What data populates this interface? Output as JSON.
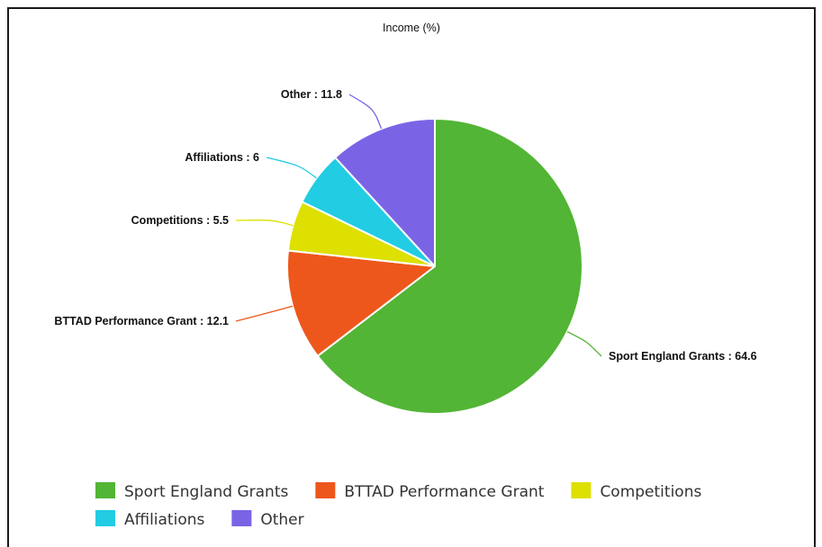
{
  "chart_data": {
    "type": "pie",
    "title": "Income (%)",
    "slices": [
      {
        "label": "Sport England Grants",
        "value": 64.6,
        "color": "#52b535"
      },
      {
        "label": "BTTAD Performance Grant",
        "value": 12.1,
        "color": "#ee571c"
      },
      {
        "label": "Competitions",
        "value": 5.5,
        "color": "#dde000"
      },
      {
        "label": "Affiliations",
        "value": 6,
        "color": "#22cce3"
      },
      {
        "label": "Other",
        "value": 11.8,
        "color": "#7b63e6"
      }
    ],
    "label_separator": " : ",
    "legend_position": "bottom"
  }
}
